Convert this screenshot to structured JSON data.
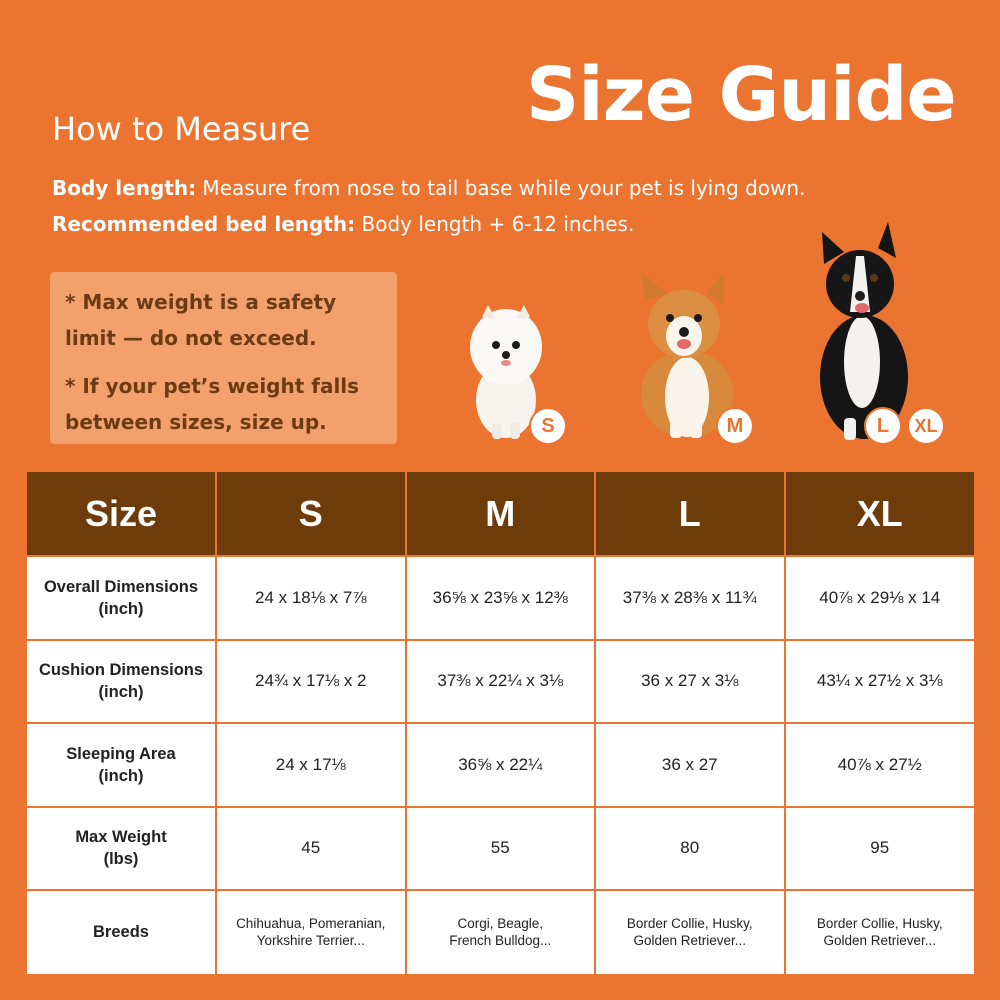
{
  "header": {
    "title": "Size Guide",
    "subtitle": "How to Measure"
  },
  "instructions": {
    "body_length_label": "Body length:",
    "body_length_text": " Measure from nose to tail base while your pet is lying down.",
    "bed_length_label": "Recommended bed length:",
    "bed_length_text": " Body length + 6-12 inches."
  },
  "notes": {
    "max_weight": "* Max weight is a safety limit — do not exceed.",
    "size_up": "* If your pet’s weight falls between sizes, size up."
  },
  "badges": {
    "small": "S",
    "medium": "M",
    "large": "L",
    "xlarge": "XL"
  },
  "icons": [
    "pomeranian-dog-icon",
    "corgi-dog-icon",
    "border-collie-dog-icon"
  ],
  "colors": {
    "background": "#ec7431",
    "table_header": "#6e3b0b",
    "note_box": "#f2a16c"
  },
  "table": {
    "headers": [
      "Size",
      "S",
      "M",
      "L",
      "XL"
    ],
    "rows": [
      {
        "label_line1": "Overall Dimensions",
        "label_line2": "(inch)",
        "values": [
          "24 x 18⅛ x 7⅞",
          "36⅝ x 23⅝ x 12⅜",
          "37⅜ x 28⅜ x 11¾",
          "40⅞ x 29⅛ x 14"
        ]
      },
      {
        "label_line1": "Cushion Dimensions",
        "label_line2": "(inch)",
        "values": [
          "24¾ x 17⅛ x 2",
          "37⅜ x 22¼ x 3⅛",
          "36 x 27 x 3⅛",
          "43¼ x 27½ x 3⅛"
        ]
      },
      {
        "label_line1": "Sleeping Area",
        "label_line2": "(inch)",
        "values": [
          "24 x 17⅛",
          "36⅝ x 22¼",
          "36 x 27",
          "40⅞ x 27½"
        ]
      },
      {
        "label_line1": "Max Weight",
        "label_line2": "(lbs)",
        "values": [
          "45",
          "55",
          "80",
          "95"
        ]
      },
      {
        "label_line1": "Breeds",
        "label_line2": "",
        "values": [
          {
            "l1": "Chihuahua, Pomeranian,",
            "l2": "Yorkshire Terrier..."
          },
          {
            "l1": "Corgi, Beagle,",
            "l2": "French Bulldog..."
          },
          {
            "l1": "Border Collie, Husky,",
            "l2": "Golden Retriever..."
          },
          {
            "l1": "Border Collie, Husky,",
            "l2": "Golden Retriever..."
          }
        ]
      }
    ]
  }
}
